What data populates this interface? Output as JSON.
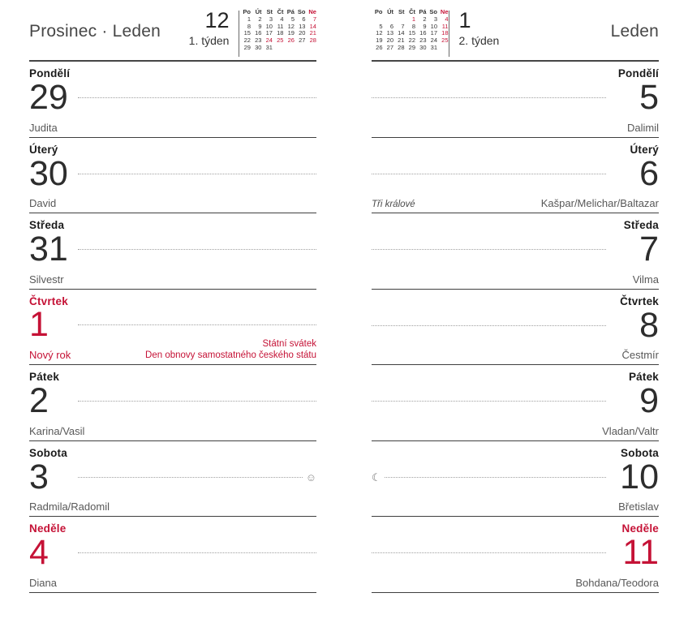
{
  "colors": {
    "accent_red": "#c51236"
  },
  "pages": [
    {
      "side": "left",
      "title": "Prosinec · Leden",
      "month_number": "12",
      "week_label": "1. týden",
      "mini_calendar": {
        "weekdays": [
          {
            "t": "Po"
          },
          {
            "t": "Út"
          },
          {
            "t": "St"
          },
          {
            "t": "Čt"
          },
          {
            "t": "Pá"
          },
          {
            "t": "So"
          },
          {
            "t": "Ne",
            "red": true
          }
        ],
        "weeks": [
          [
            {
              "d": "1"
            },
            {
              "d": "2"
            },
            {
              "d": "3"
            },
            {
              "d": "4"
            },
            {
              "d": "5"
            },
            {
              "d": "6"
            },
            {
              "d": "7",
              "red": true
            }
          ],
          [
            {
              "d": "8"
            },
            {
              "d": "9"
            },
            {
              "d": "10"
            },
            {
              "d": "11"
            },
            {
              "d": "12"
            },
            {
              "d": "13"
            },
            {
              "d": "14",
              "red": true
            }
          ],
          [
            {
              "d": "15"
            },
            {
              "d": "16"
            },
            {
              "d": "17"
            },
            {
              "d": "18"
            },
            {
              "d": "19"
            },
            {
              "d": "20"
            },
            {
              "d": "21",
              "red": true
            }
          ],
          [
            {
              "d": "22"
            },
            {
              "d": "23"
            },
            {
              "d": "24",
              "red": true
            },
            {
              "d": "25",
              "red": true
            },
            {
              "d": "26",
              "red": true
            },
            {
              "d": "27"
            },
            {
              "d": "28",
              "red": true
            }
          ],
          [
            {
              "d": "29"
            },
            {
              "d": "30"
            },
            {
              "d": "31"
            },
            {
              "d": ""
            },
            {
              "d": ""
            },
            {
              "d": ""
            },
            {
              "d": ""
            }
          ]
        ]
      },
      "days": [
        {
          "name": "Pondělí",
          "number": "29",
          "nameday": "Judita"
        },
        {
          "name": "Úterý",
          "number": "30",
          "nameday": "David"
        },
        {
          "name": "Středa",
          "number": "31",
          "nameday": "Silvestr"
        },
        {
          "name": "Čtvrtek",
          "number": "1",
          "nameday": "Nový rok",
          "red_name": true,
          "red_number": true,
          "red_nameday": true,
          "holiday_lines": [
            "Státní svátek",
            "Den obnovy samostatného českého státu"
          ]
        },
        {
          "name": "Pátek",
          "number": "2",
          "nameday": "Karina/Vasil"
        },
        {
          "name": "Sobota",
          "number": "3",
          "nameday": "Radmila/Radomil",
          "icon": {
            "glyph": "☺",
            "name": "full-moon-icon",
            "pos": "end"
          }
        },
        {
          "name": "Neděle",
          "number": "4",
          "nameday": "Diana",
          "red_name": true,
          "red_number": true
        }
      ]
    },
    {
      "side": "right",
      "title": "Leden",
      "month_number": "1",
      "week_label": "2. týden",
      "mini_calendar": {
        "weekdays": [
          {
            "t": "Po"
          },
          {
            "t": "Út"
          },
          {
            "t": "St"
          },
          {
            "t": "Čt"
          },
          {
            "t": "Pá"
          },
          {
            "t": "So"
          },
          {
            "t": "Ne",
            "red": true
          }
        ],
        "weeks": [
          [
            {
              "d": ""
            },
            {
              "d": ""
            },
            {
              "d": ""
            },
            {
              "d": "1",
              "red": true
            },
            {
              "d": "2"
            },
            {
              "d": "3"
            },
            {
              "d": "4",
              "red": true
            }
          ],
          [
            {
              "d": "5"
            },
            {
              "d": "6"
            },
            {
              "d": "7"
            },
            {
              "d": "8"
            },
            {
              "d": "9"
            },
            {
              "d": "10"
            },
            {
              "d": "11",
              "red": true
            }
          ],
          [
            {
              "d": "12"
            },
            {
              "d": "13"
            },
            {
              "d": "14"
            },
            {
              "d": "15"
            },
            {
              "d": "16"
            },
            {
              "d": "17"
            },
            {
              "d": "18",
              "red": true
            }
          ],
          [
            {
              "d": "19"
            },
            {
              "d": "20"
            },
            {
              "d": "21"
            },
            {
              "d": "22"
            },
            {
              "d": "23"
            },
            {
              "d": "24"
            },
            {
              "d": "25",
              "red": true
            }
          ],
          [
            {
              "d": "26"
            },
            {
              "d": "27"
            },
            {
              "d": "28"
            },
            {
              "d": "29"
            },
            {
              "d": "30"
            },
            {
              "d": "31"
            },
            {
              "d": ""
            }
          ]
        ]
      },
      "days": [
        {
          "name": "Pondělí",
          "number": "5",
          "nameday": "Dalimil"
        },
        {
          "name": "Úterý",
          "number": "6",
          "nameday": "Kašpar/Melichar/Baltazar",
          "observance": "Tři králové"
        },
        {
          "name": "Středa",
          "number": "7",
          "nameday": "Vilma"
        },
        {
          "name": "Čtvrtek",
          "number": "8",
          "nameday": "Čestmír"
        },
        {
          "name": "Pátek",
          "number": "9",
          "nameday": "Vladan/Valtr"
        },
        {
          "name": "Sobota",
          "number": "10",
          "nameday": "Břetislav",
          "icon": {
            "glyph": "☾",
            "name": "waning-moon-icon",
            "pos": "start"
          }
        },
        {
          "name": "Neděle",
          "number": "11",
          "nameday": "Bohdana/Teodora",
          "red_name": true,
          "red_number": true
        }
      ]
    }
  ]
}
